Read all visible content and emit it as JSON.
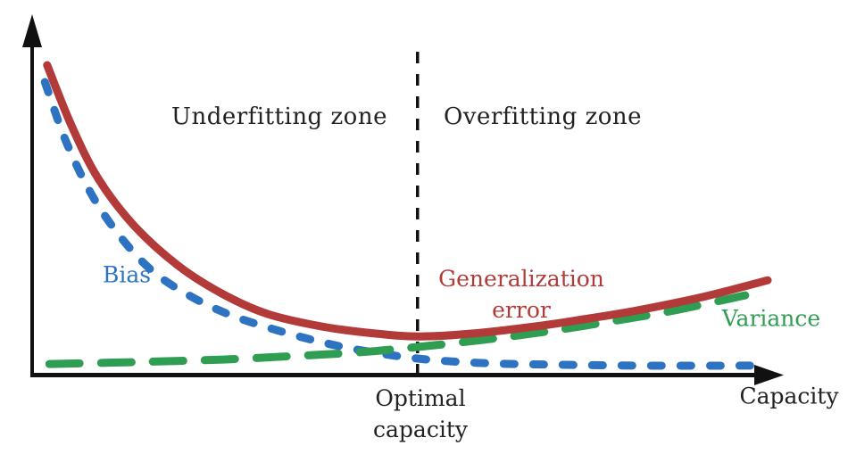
{
  "chart_data": {
    "type": "line",
    "title": "",
    "xlabel": "Capacity",
    "ylabel": "",
    "x_axis_has_arrow": true,
    "y_axis_has_arrow": true,
    "grid": false,
    "legend_position": "inline-labels",
    "background_color": "#ffffff",
    "axis_color": "#111111",
    "x_range_norm": [
      0,
      1
    ],
    "y_range_norm": [
      0,
      1
    ],
    "optimal_capacity_x": 0.514,
    "x_marker_label": "Optimal\ncapacity",
    "x_marker_line_style": "dashed",
    "x_marker_line_color": "#111111",
    "zones": [
      {
        "label": "Underfitting zone",
        "side": "left-of-marker"
      },
      {
        "label": "Overfitting zone",
        "side": "right-of-marker"
      }
    ],
    "series": [
      {
        "name": "bias",
        "label": "Bias",
        "color": "#2d73c2",
        "line_style": "dotted",
        "trend": "decreasing",
        "points": [
          [
            0.017,
            0.911
          ],
          [
            0.046,
            0.722
          ],
          [
            0.082,
            0.55
          ],
          [
            0.124,
            0.411
          ],
          [
            0.165,
            0.314
          ],
          [
            0.213,
            0.242
          ],
          [
            0.261,
            0.189
          ],
          [
            0.314,
            0.147
          ],
          [
            0.374,
            0.108
          ],
          [
            0.433,
            0.078
          ],
          [
            0.514,
            0.05
          ],
          [
            0.6,
            0.036
          ],
          [
            0.695,
            0.031
          ],
          [
            0.814,
            0.028
          ],
          [
            0.963,
            0.028
          ]
        ]
      },
      {
        "name": "variance",
        "label": "Variance",
        "color": "#2f9e53",
        "line_style": "dashed",
        "trend": "increasing",
        "points": [
          [
            0.023,
            0.033
          ],
          [
            0.136,
            0.039
          ],
          [
            0.255,
            0.047
          ],
          [
            0.35,
            0.058
          ],
          [
            0.433,
            0.069
          ],
          [
            0.514,
            0.086
          ],
          [
            0.6,
            0.108
          ],
          [
            0.683,
            0.133
          ],
          [
            0.767,
            0.164
          ],
          [
            0.85,
            0.197
          ],
          [
            0.951,
            0.247
          ]
        ]
      },
      {
        "name": "generalization_error",
        "label": "Generalization\nerror",
        "color": "#b23a38",
        "line_style": "solid",
        "trend": "u-shaped",
        "points": [
          [
            0.02,
            0.964
          ],
          [
            0.052,
            0.778
          ],
          [
            0.088,
            0.611
          ],
          [
            0.136,
            0.464
          ],
          [
            0.195,
            0.339
          ],
          [
            0.255,
            0.25
          ],
          [
            0.314,
            0.189
          ],
          [
            0.386,
            0.15
          ],
          [
            0.457,
            0.128
          ],
          [
            0.517,
            0.119
          ],
          [
            0.588,
            0.128
          ],
          [
            0.671,
            0.15
          ],
          [
            0.743,
            0.175
          ],
          [
            0.814,
            0.203
          ],
          [
            0.898,
            0.244
          ],
          [
            0.981,
            0.294
          ]
        ]
      }
    ]
  }
}
